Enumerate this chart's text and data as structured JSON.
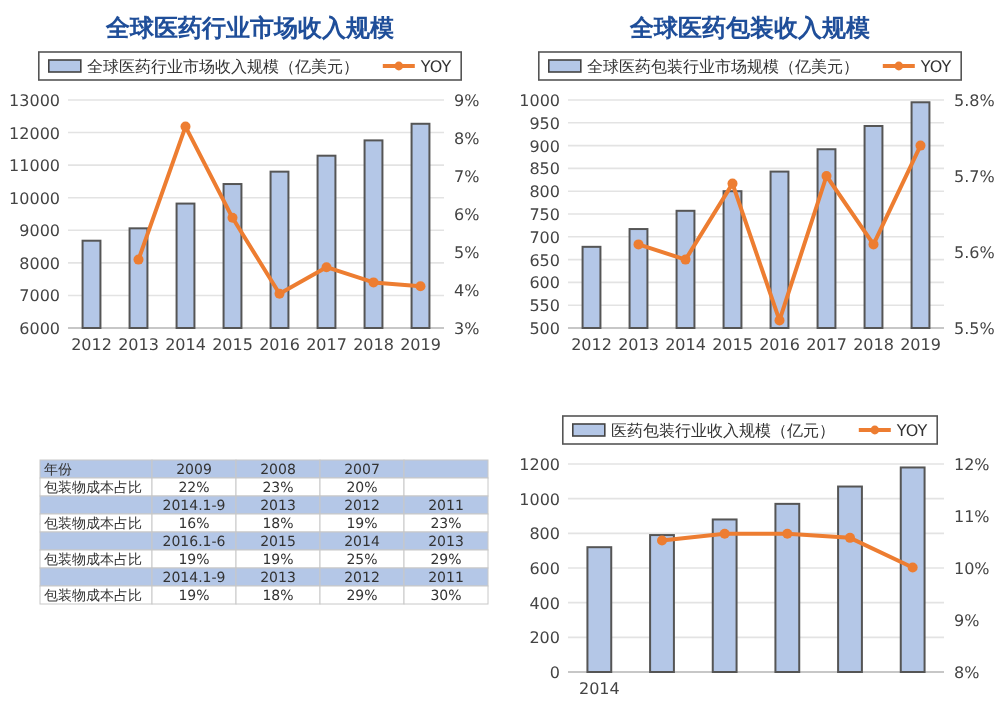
{
  "chart_data": [
    {
      "type": "bar",
      "title": "全球医药行业市场收入规模",
      "categories": [
        "2012",
        "2013",
        "2014",
        "2015",
        "2016",
        "2017",
        "2018",
        "2019"
      ],
      "series": [
        {
          "name": "全球医药行业市场收入规模（亿美元）",
          "type": "bar",
          "color": "#b4c7e7",
          "values": [
            8680,
            9060,
            9820,
            10420,
            10800,
            11290,
            11760,
            12270
          ]
        },
        {
          "name": "YOY",
          "type": "line",
          "axis": "y2",
          "color": "#ed7d31",
          "values": [
            null,
            4.8,
            8.3,
            5.9,
            3.9,
            4.6,
            4.2,
            4.1
          ]
        }
      ],
      "ylim": [
        6000,
        13000
      ],
      "yticks": [
        6000,
        7000,
        8000,
        9000,
        10000,
        11000,
        12000,
        13000
      ],
      "y2lim": [
        3,
        9
      ],
      "y2ticks": [
        {
          "value": 3,
          "label": "3%"
        },
        {
          "value": 4,
          "label": "4%"
        },
        {
          "value": 5,
          "label": "5%"
        },
        {
          "value": 6,
          "label": "6%"
        },
        {
          "value": 7,
          "label": "7%"
        },
        {
          "value": 8,
          "label": "8%"
        },
        {
          "value": 9,
          "label": "9%"
        }
      ],
      "grid": "y",
      "legend": "top",
      "marker": "circle"
    },
    {
      "type": "bar",
      "title": "全球医药包装收入规模",
      "categories": [
        "2012",
        "2013",
        "2014",
        "2015",
        "2016",
        "2017",
        "2018",
        "2019"
      ],
      "series": [
        {
          "name": "全球医药包装行业市场规模（亿美元）",
          "type": "bar",
          "color": "#b4c7e7",
          "values": [
            678,
            717,
            757,
            800,
            843,
            892,
            943,
            995
          ]
        },
        {
          "name": "YOY",
          "type": "line",
          "axis": "y2",
          "color": "#ed7d31",
          "values": [
            null,
            5.61,
            5.59,
            5.69,
            5.51,
            5.7,
            5.61,
            5.74
          ]
        }
      ],
      "ylim": [
        500,
        1000
      ],
      "yticks": [
        500,
        550,
        600,
        650,
        700,
        750,
        800,
        850,
        900,
        950,
        1000
      ],
      "y2lim": [
        5.5,
        5.8
      ],
      "y2ticks": [
        {
          "value": 5.5,
          "label": "5.5%"
        },
        {
          "value": 5.6,
          "label": "5.6%"
        },
        {
          "value": 5.7,
          "label": "5.7%"
        },
        {
          "value": 5.8,
          "label": "5.8%"
        }
      ],
      "grid": "y",
      "legend": "top",
      "marker": "circle"
    },
    {
      "type": "other",
      "annotations": [
        "年份",
        "2009",
        "2008",
        "2007",
        null,
        "包装物成本占比",
        "22%",
        "23%",
        "20%",
        null,
        null,
        "2014.1-9",
        "2013",
        "2012",
        "2011",
        "包装物成本占比",
        "16%",
        "18%",
        "19%",
        "23%",
        null,
        "2016.1-6",
        "2015",
        "2014",
        "2013",
        "包装物成本占比",
        "19%",
        "19%",
        "25%",
        "29%",
        null,
        "2014.1-9",
        "2013",
        "2012",
        "2011",
        "包装物成本占比",
        "19%",
        "18%",
        "29%",
        "30%"
      ]
    },
    {
      "type": "bar",
      "categories": [
        "2014",
        null,
        null,
        null,
        null,
        null
      ],
      "series": [
        {
          "name": "医药包装行业收入规模（亿元）",
          "type": "bar",
          "color": "#b4c7e7",
          "values": [
            720,
            790,
            880,
            970,
            1070,
            1180
          ]
        },
        {
          "name": "YOY",
          "type": "line",
          "axis": "y2",
          "color": "#ed7d31",
          "values": [
            null,
            10.53,
            10.66,
            10.66,
            10.58,
            10.01
          ]
        }
      ],
      "ylim": [
        0,
        1200
      ],
      "yticks": [
        0,
        200,
        400,
        600,
        800,
        1000,
        1200
      ],
      "y2lim": [
        8,
        12
      ],
      "y2ticks": [
        {
          "value": 8,
          "label": "8%"
        },
        {
          "value": 9,
          "label": "9%"
        },
        {
          "value": 10,
          "label": "10%"
        },
        {
          "value": 11,
          "label": "11%"
        },
        {
          "value": 12,
          "label": "12%"
        }
      ],
      "grid": "y",
      "legend": "top",
      "marker": "circle"
    }
  ]
}
